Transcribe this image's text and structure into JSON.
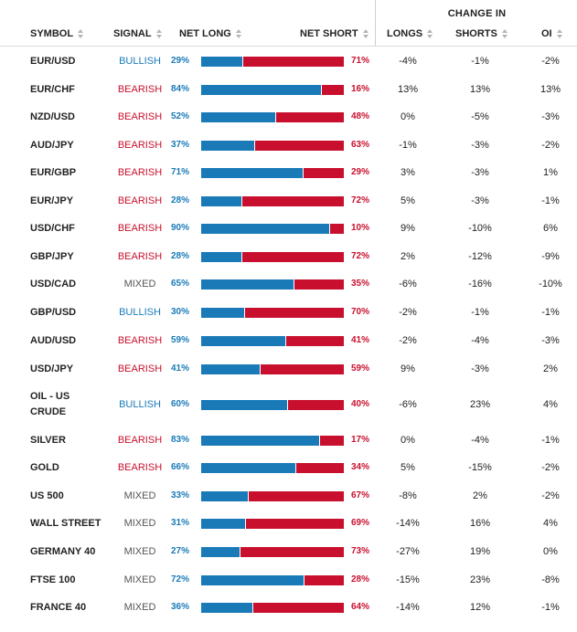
{
  "header": {
    "change_in": "CHANGE IN",
    "columns": {
      "symbol": "SYMBOL",
      "signal": "SIGNAL",
      "net_long": "NET LONG",
      "net_short": "NET SHORT",
      "longs": "LONGS",
      "shorts": "SHORTS",
      "oi": "OI"
    }
  },
  "colors": {
    "long": "#1a7ab8",
    "short": "#c8102e",
    "bullish": "#1a7ab8",
    "bearish": "#c8102e",
    "mixed": "#555555"
  },
  "rows": [
    {
      "symbol": "EUR/USD",
      "signal": "BULLISH",
      "net_long": "29%",
      "net_short": "71%",
      "longs": "-4%",
      "shorts": "-1%",
      "oi": "-2%"
    },
    {
      "symbol": "EUR/CHF",
      "signal": "BEARISH",
      "net_long": "84%",
      "net_short": "16%",
      "longs": "13%",
      "shorts": "13%",
      "oi": "13%"
    },
    {
      "symbol": "NZD/USD",
      "signal": "BEARISH",
      "net_long": "52%",
      "net_short": "48%",
      "longs": "0%",
      "shorts": "-5%",
      "oi": "-3%"
    },
    {
      "symbol": "AUD/JPY",
      "signal": "BEARISH",
      "net_long": "37%",
      "net_short": "63%",
      "longs": "-1%",
      "shorts": "-3%",
      "oi": "-2%"
    },
    {
      "symbol": "EUR/GBP",
      "signal": "BEARISH",
      "net_long": "71%",
      "net_short": "29%",
      "longs": "3%",
      "shorts": "-3%",
      "oi": "1%"
    },
    {
      "symbol": "EUR/JPY",
      "signal": "BEARISH",
      "net_long": "28%",
      "net_short": "72%",
      "longs": "5%",
      "shorts": "-3%",
      "oi": "-1%"
    },
    {
      "symbol": "USD/CHF",
      "signal": "BEARISH",
      "net_long": "90%",
      "net_short": "10%",
      "longs": "9%",
      "shorts": "-10%",
      "oi": "6%"
    },
    {
      "symbol": "GBP/JPY",
      "signal": "BEARISH",
      "net_long": "28%",
      "net_short": "72%",
      "longs": "2%",
      "shorts": "-12%",
      "oi": "-9%"
    },
    {
      "symbol": "USD/CAD",
      "signal": "MIXED",
      "net_long": "65%",
      "net_short": "35%",
      "longs": "-6%",
      "shorts": "-16%",
      "oi": "-10%"
    },
    {
      "symbol": "GBP/USD",
      "signal": "BULLISH",
      "net_long": "30%",
      "net_short": "70%",
      "longs": "-2%",
      "shorts": "-1%",
      "oi": "-1%"
    },
    {
      "symbol": "AUD/USD",
      "signal": "BEARISH",
      "net_long": "59%",
      "net_short": "41%",
      "longs": "-2%",
      "shorts": "-4%",
      "oi": "-3%"
    },
    {
      "symbol": "USD/JPY",
      "signal": "BEARISH",
      "net_long": "41%",
      "net_short": "59%",
      "longs": "9%",
      "shorts": "-3%",
      "oi": "2%"
    },
    {
      "symbol": "OIL - US CRUDE",
      "symbol_line1": "OIL - US",
      "symbol_line2": "CRUDE",
      "signal": "BULLISH",
      "net_long": "60%",
      "net_short": "40%",
      "longs": "-6%",
      "shorts": "23%",
      "oi": "4%"
    },
    {
      "symbol": "SILVER",
      "signal": "BEARISH",
      "net_long": "83%",
      "net_short": "17%",
      "longs": "0%",
      "shorts": "-4%",
      "oi": "-1%"
    },
    {
      "symbol": "GOLD",
      "signal": "BEARISH",
      "net_long": "66%",
      "net_short": "34%",
      "longs": "5%",
      "shorts": "-15%",
      "oi": "-2%"
    },
    {
      "symbol": "US 500",
      "signal": "MIXED",
      "net_long": "33%",
      "net_short": "67%",
      "longs": "-8%",
      "shorts": "2%",
      "oi": "-2%"
    },
    {
      "symbol": "WALL STREET",
      "signal": "MIXED",
      "net_long": "31%",
      "net_short": "69%",
      "longs": "-14%",
      "shorts": "16%",
      "oi": "4%"
    },
    {
      "symbol": "GERMANY 40",
      "signal": "MIXED",
      "net_long": "27%",
      "net_short": "73%",
      "longs": "-27%",
      "shorts": "19%",
      "oi": "0%"
    },
    {
      "symbol": "FTSE 100",
      "signal": "MIXED",
      "net_long": "72%",
      "net_short": "28%",
      "longs": "-15%",
      "shorts": "23%",
      "oi": "-8%"
    },
    {
      "symbol": "FRANCE 40",
      "signal": "MIXED",
      "net_long": "36%",
      "net_short": "64%",
      "longs": "-14%",
      "shorts": "12%",
      "oi": "-1%"
    }
  ]
}
